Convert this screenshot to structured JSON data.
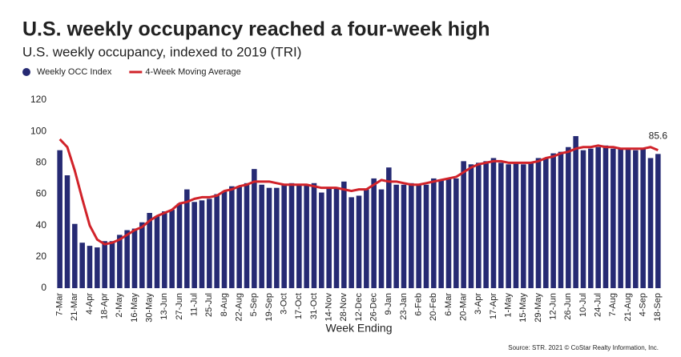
{
  "chart_data": {
    "type": "bar",
    "title": "U.S. weekly occupancy reached a four-week high",
    "subtitle": "U.S. weekly occupancy, indexed to 2019 (TRI)",
    "x_label": "Week Ending",
    "source": "Source: STR. 2021 © CoStar Realty Information, Inc.",
    "categories": [
      "7-Mar",
      null,
      "21-Mar",
      null,
      "4-Apr",
      null,
      "18-Apr",
      null,
      "2-May",
      null,
      "16-May",
      null,
      "30-May",
      null,
      "13-Jun",
      null,
      "27-Jun",
      null,
      "11-Jul",
      null,
      "25-Jul",
      null,
      "8-Aug",
      null,
      "22-Aug",
      null,
      "5-Sep",
      null,
      "19-Sep",
      null,
      "3-Oct",
      null,
      "17-Oct",
      null,
      "31-Oct",
      null,
      "14-Nov",
      null,
      "28-Nov",
      null,
      "12-Dec",
      null,
      "26-Dec",
      null,
      "9-Jan",
      null,
      "23-Jan",
      null,
      "6-Feb",
      null,
      "20-Feb",
      null,
      "6-Mar",
      null,
      "20-Mar",
      null,
      "3-Apr",
      null,
      "17-Apr",
      null,
      "1-May",
      null,
      "15-May",
      null,
      "29-May",
      null,
      "12-Jun",
      null,
      "26-Jun",
      null,
      "10-Jul",
      null,
      "24-Jul",
      null,
      "7-Aug",
      null,
      "21-Aug",
      null,
      "4-Sep",
      null,
      "18-Sep"
    ],
    "series": [
      {
        "name": "Weekly OCC Index",
        "type": "bar",
        "color": "#262a73",
        "values": [
          88,
          72,
          41,
          29,
          27,
          26,
          30,
          30,
          34,
          37,
          38,
          42,
          48,
          46,
          49,
          50,
          54,
          63,
          55,
          56,
          57,
          60,
          62,
          65,
          65,
          67,
          76,
          66,
          64,
          64,
          66,
          67,
          66,
          66,
          67,
          61,
          64,
          64,
          68,
          58,
          59,
          63,
          70,
          63,
          77,
          66,
          66,
          67,
          66,
          66,
          70,
          69,
          70,
          70,
          81,
          79,
          80,
          81,
          83,
          80,
          79,
          80,
          79,
          80,
          83,
          83,
          86,
          87,
          90,
          97,
          88,
          89,
          90,
          91,
          89,
          89,
          89,
          88,
          89,
          83,
          85.6
        ]
      },
      {
        "name": "4-Week Moving Average",
        "type": "line",
        "color": "#d1232a",
        "values": [
          95,
          90,
          75,
          57,
          40,
          31,
          28,
          29,
          31,
          34,
          37,
          39,
          43,
          46,
          48,
          50,
          54,
          55,
          57,
          58,
          58,
          59,
          62,
          63,
          65,
          66,
          68,
          68,
          68,
          67,
          66,
          66,
          66,
          66,
          65,
          64,
          64,
          64,
          63,
          62,
          63,
          63,
          66,
          69,
          68,
          68,
          67,
          66,
          66,
          67,
          68,
          69,
          70,
          71,
          74,
          77,
          79,
          80,
          81,
          81,
          80,
          80,
          80,
          80,
          81,
          83,
          84,
          86,
          87,
          89,
          90,
          90,
          91,
          90,
          90,
          89,
          89,
          89,
          89,
          90,
          88
        ]
      }
    ],
    "ylim": [
      0,
      120
    ],
    "yticks": [
      0,
      20,
      40,
      60,
      80,
      100,
      120
    ],
    "grid": false,
    "legend": "top-left"
  }
}
